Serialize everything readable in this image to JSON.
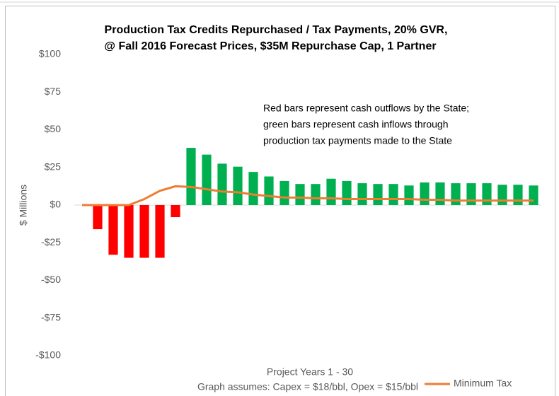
{
  "chart_data": {
    "type": "bar",
    "title": [
      "Production Tax Credits Repurchased / Tax Payments, 20% GVR,",
      "@ Fall 2016 Forecast Prices, $35M Repurchase Cap, 1 Partner"
    ],
    "annotation": [
      "Red bars represent cash outflows by the State;",
      "green bars represent cash inflows through",
      "production tax payments made to the State"
    ],
    "ylabel": "$ Millions",
    "xlabel": "Project Years 1 - 30",
    "footnote": "Graph assumes: Capex = $18/bbl, Opex = $15/bbl",
    "ylim": [
      -100,
      100
    ],
    "yticks": [
      {
        "value": -100,
        "label": "-$100"
      },
      {
        "value": -75,
        "label": "-$75"
      },
      {
        "value": -50,
        "label": "-$50"
      },
      {
        "value": -25,
        "label": "-$25"
      },
      {
        "value": 0,
        "label": "$0"
      },
      {
        "value": 25,
        "label": "$25"
      },
      {
        "value": 50,
        "label": "$50"
      },
      {
        "value": 75,
        "label": "$75"
      },
      {
        "value": 100,
        "label": "$100"
      }
    ],
    "values": [
      0,
      -16,
      -33,
      -35,
      -35,
      -35,
      -8,
      38,
      33.5,
      27.5,
      25.5,
      22,
      19,
      16,
      14,
      14,
      17.5,
      16,
      14.5,
      14,
      14,
      13,
      15,
      15,
      14.5,
      14.5,
      14.5,
      13.5,
      13.5,
      13
    ],
    "positive_color": "#00b050",
    "negative_color": "#ff0000",
    "series": [
      {
        "name": "Minimum Tax",
        "type": "line",
        "color": "#ed7d31",
        "values": [
          0,
          0,
          0,
          0,
          4,
          9.5,
          12.5,
          12,
          10.5,
          9,
          8.5,
          7,
          6,
          5,
          5,
          4.5,
          4.5,
          4,
          4,
          4,
          4,
          4,
          3.5,
          3.5,
          3,
          3,
          3,
          3,
          3,
          3
        ]
      }
    ],
    "legend": "bottom-right",
    "grid": false
  }
}
